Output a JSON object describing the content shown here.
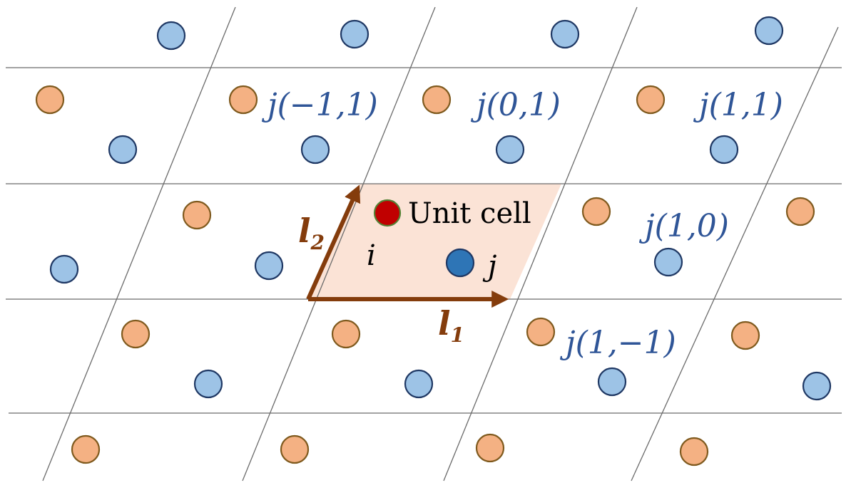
{
  "colors": {
    "background": "#ffffff",
    "grid": "#6b6b6b",
    "orange_fill": "#f4b183",
    "orange_stroke": "#7f5a1e",
    "blue_fill": "#9dc3e6",
    "blue_stroke": "#1f3864",
    "unit_cell_fill": "#fbe3d6",
    "vector": "#843c0c",
    "label_blue": "#2f5597",
    "atom_i_fill": "#c00000",
    "atom_i_stroke": "#548235",
    "atom_j_fill": "#2e75b6",
    "atom_j_stroke": "#1f3864"
  },
  "labels": {
    "unit_cell": "Unit cell",
    "atom_i": "i",
    "atom_j": "j",
    "vector_l1": "l",
    "vector_l1_sub": "1",
    "vector_l2": "l",
    "vector_l2_sub": "2",
    "j_neighbors": [
      "j(−1,1)",
      "j(0,1)",
      "j(1,1)",
      "j(1,0)",
      "j(1,−1)"
    ]
  },
  "icons": {
    "unit_cell_highlight": "parallelogram-shape",
    "lattice_vectors": "arrow-icon",
    "atoms": "circle-shape"
  }
}
